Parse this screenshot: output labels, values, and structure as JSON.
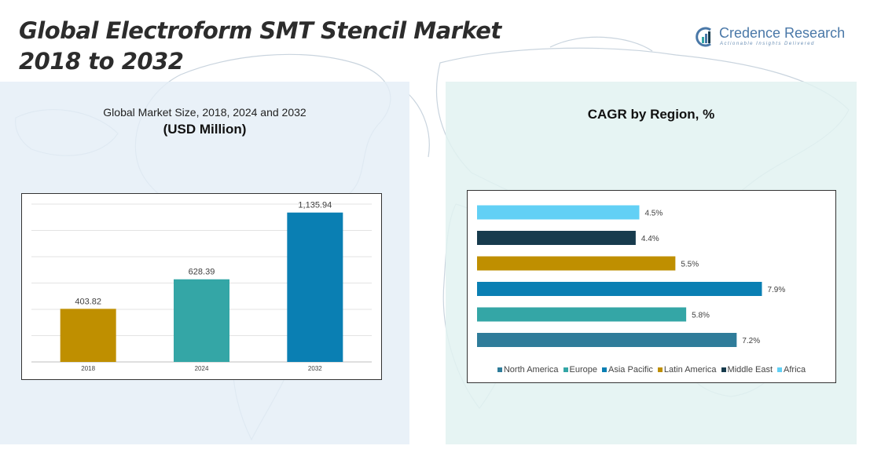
{
  "header": {
    "title_line1": "Global Electroform SMT Stencil Market",
    "title_line2": "2018 to 2032"
  },
  "logo": {
    "name": "Credence Research",
    "tagline": "Actionable Insights Delivered"
  },
  "left_panel": {
    "subtitle": "Global Market Size, 2018, 2024 and 2032",
    "unit": "(USD Million)"
  },
  "right_panel": {
    "title": "CAGR by Region, %"
  },
  "chart_data": [
    {
      "type": "bar",
      "categories": [
        "2018",
        "2024",
        "2032"
      ],
      "values": [
        403.82,
        628.39,
        1135.94
      ],
      "value_labels": [
        "403.82",
        "628.39",
        "1,135.94"
      ],
      "colors": [
        "#bf8f00",
        "#34a6a6",
        "#0a7fb3"
      ],
      "ylim": [
        0,
        1200
      ],
      "grid": true
    },
    {
      "type": "bar",
      "orientation": "horizontal",
      "categories": [
        "North America",
        "Europe",
        "Asia Pacific",
        "Latin America",
        "Middle East",
        "Africa"
      ],
      "values": [
        7.2,
        5.8,
        7.9,
        5.5,
        4.4,
        4.5
      ],
      "value_labels": [
        "7.2%",
        "5.8%",
        "7.9%",
        "5.5%",
        "4.4%",
        "4.5%"
      ],
      "colors": [
        "#2f7c9a",
        "#34a6a6",
        "#0a7fb3",
        "#bf8f00",
        "#173b4d",
        "#62d0f5"
      ],
      "xlim": [
        0,
        8.5
      ],
      "legend": "bottom",
      "grid": false
    }
  ]
}
